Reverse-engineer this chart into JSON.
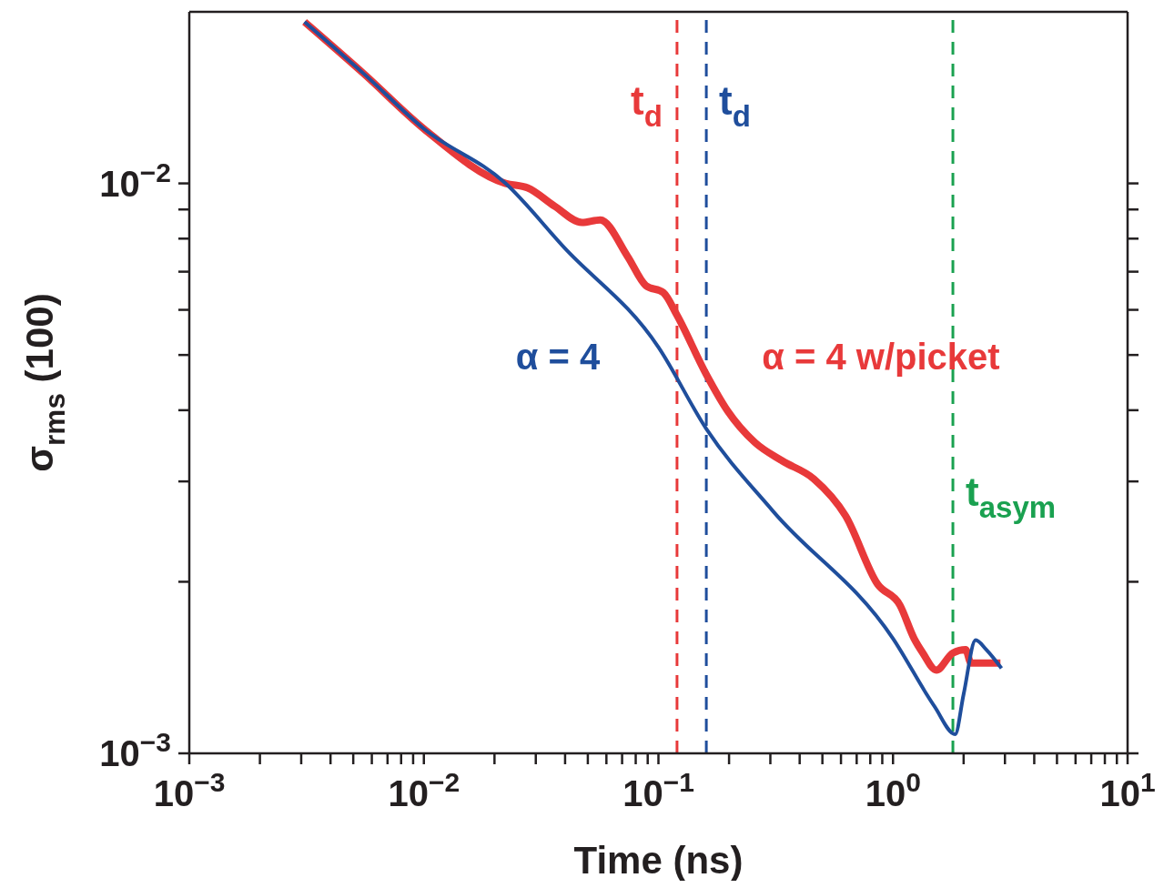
{
  "chart_data": {
    "type": "line",
    "xlabel": "Time (ns)",
    "ylabel": "σ$_{rms}$ (100)",
    "log": "xy",
    "xlim": [
      0.001,
      10
    ],
    "ylim": [
      0.001,
      0.02
    ],
    "xticks": [
      {
        "value": 0.001,
        "label": "10$^{−3}$"
      },
      {
        "value": 0.002,
        "label": null
      },
      {
        "value": 0.003,
        "label": null
      },
      {
        "value": 0.004,
        "label": null
      },
      {
        "value": 0.005,
        "label": null
      },
      {
        "value": 0.006,
        "label": null
      },
      {
        "value": 0.007,
        "label": null
      },
      {
        "value": 0.008,
        "label": null
      },
      {
        "value": 0.009,
        "label": null
      },
      {
        "value": 0.01,
        "label": "10$^{−2}$"
      },
      {
        "value": 0.02,
        "label": null
      },
      {
        "value": 0.03,
        "label": null
      },
      {
        "value": 0.04,
        "label": null
      },
      {
        "value": 0.05,
        "label": null
      },
      {
        "value": 0.06,
        "label": null
      },
      {
        "value": 0.07,
        "label": null
      },
      {
        "value": 0.08,
        "label": null
      },
      {
        "value": 0.09,
        "label": null
      },
      {
        "value": 0.1,
        "label": "10$^{−1}$"
      },
      {
        "value": 0.2,
        "label": null
      },
      {
        "value": 0.3,
        "label": null
      },
      {
        "value": 0.4,
        "label": null
      },
      {
        "value": 0.5,
        "label": null
      },
      {
        "value": 0.6,
        "label": null
      },
      {
        "value": 0.7,
        "label": null
      },
      {
        "value": 0.8,
        "label": null
      },
      {
        "value": 0.9,
        "label": null
      },
      {
        "value": 1,
        "label": "10$^{0}$"
      },
      {
        "value": 2,
        "label": null
      },
      {
        "value": 3,
        "label": null
      },
      {
        "value": 4,
        "label": null
      },
      {
        "value": 5,
        "label": null
      },
      {
        "value": 6,
        "label": null
      },
      {
        "value": 7,
        "label": null
      },
      {
        "value": 8,
        "label": null
      },
      {
        "value": 9,
        "label": null
      },
      {
        "value": 10,
        "label": "10$^{1}$"
      }
    ],
    "yticks": [
      {
        "value": 0.001,
        "label": "10$^{−3}$"
      },
      {
        "value": 0.002,
        "label": null
      },
      {
        "value": 0.003,
        "label": null
      },
      {
        "value": 0.004,
        "label": null
      },
      {
        "value": 0.005,
        "label": null
      },
      {
        "value": 0.006,
        "label": null
      },
      {
        "value": 0.007,
        "label": null
      },
      {
        "value": 0.008,
        "label": null
      },
      {
        "value": 0.009,
        "label": null
      },
      {
        "value": 0.01,
        "label": "10$^{−2}$"
      }
    ],
    "series": [
      {
        "name": "α = 4",
        "color": "#1f4e9c",
        "x": [
          0.0031,
          0.00555,
          0.01,
          0.0223,
          0.0395,
          0.1,
          0.16,
          0.308,
          1,
          1.5,
          1.84,
          2.0,
          2.25,
          2.5,
          2.9
        ],
        "values": [
          0.0192,
          0.01557,
          0.01247,
          0.01,
          0.00773,
          0.00516,
          0.00371,
          0.00266,
          0.00159,
          0.00121,
          0.00108,
          0.00127,
          0.00158,
          0.00152,
          0.00141
        ]
      },
      {
        "name": "α = 4 w/picket",
        "color": "#e8393a",
        "x": [
          0.0031,
          0.00555,
          0.01,
          0.0223,
          0.0277,
          0.0361,
          0.0472,
          0.0565,
          0.0738,
          0.0883,
          0.105,
          0.12,
          0.16,
          0.197,
          0.258,
          0.337,
          0.46,
          0.628,
          0.86,
          1.07,
          1.23,
          1.34,
          1.53,
          1.8,
          2.04,
          2.15,
          2.87
        ],
        "values": [
          0.0192,
          0.01557,
          0.01247,
          0.01,
          0.00982,
          0.00912,
          0.00854,
          0.00863,
          0.00745,
          0.00662,
          0.00643,
          0.00587,
          0.00462,
          0.00399,
          0.00351,
          0.00326,
          0.00303,
          0.00261,
          0.00198,
          0.00182,
          0.00159,
          0.0015,
          0.0014,
          0.0015,
          0.00152,
          0.00144,
          0.00144
        ]
      }
    ],
    "ref_lines": [
      {
        "axis": "x",
        "value": 0.12,
        "label": "t$_{d}$",
        "color": "#e8393a",
        "line_style": "dashed"
      },
      {
        "axis": "x",
        "value": 0.16,
        "label": "t$_{d}$",
        "color": "#1f4e9c",
        "line_style": "dashed"
      },
      {
        "axis": "x",
        "value": 1.8,
        "label": "t$_{asym}$",
        "color": "#1aa150",
        "line_style": "dashed"
      }
    ]
  }
}
